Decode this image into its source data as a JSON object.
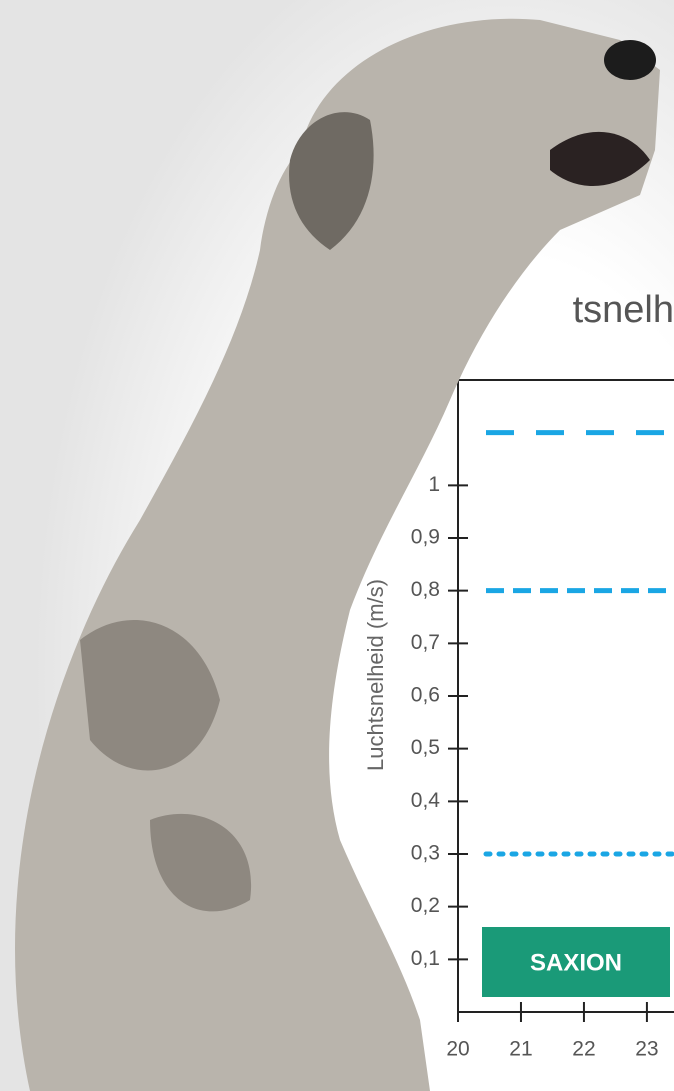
{
  "chart_data": {
    "type": "line",
    "title": "tsnelh",
    "y_label": "Luchtsnelheid (m/s)",
    "logo": "SAXION",
    "ylim": [
      0,
      1.2
    ],
    "yticks": [
      {
        "value": 0.1,
        "label": "0,1"
      },
      {
        "value": 0.2,
        "label": "0,2"
      },
      {
        "value": 0.3,
        "label": "0,3"
      },
      {
        "value": 0.4,
        "label": "0,4"
      },
      {
        "value": 0.5,
        "label": "0,5"
      },
      {
        "value": 0.6,
        "label": "0,6"
      },
      {
        "value": 0.7,
        "label": "0,7"
      },
      {
        "value": 0.8,
        "label": "0,8"
      },
      {
        "value": 0.9,
        "label": "0,9"
      },
      1
    ],
    "xlim": [
      20,
      23.43
    ],
    "xticks": [
      20,
      21,
      22,
      23
    ],
    "reference_lines": [
      {
        "value": 1.1,
        "style": "dashed",
        "color": "#1aa6e4"
      },
      {
        "value": 0.8,
        "style": "dashed-short",
        "color": "#1aa6e4"
      },
      {
        "value": 0.3,
        "style": "dotted",
        "color": "#1aa6e4"
      }
    ]
  }
}
